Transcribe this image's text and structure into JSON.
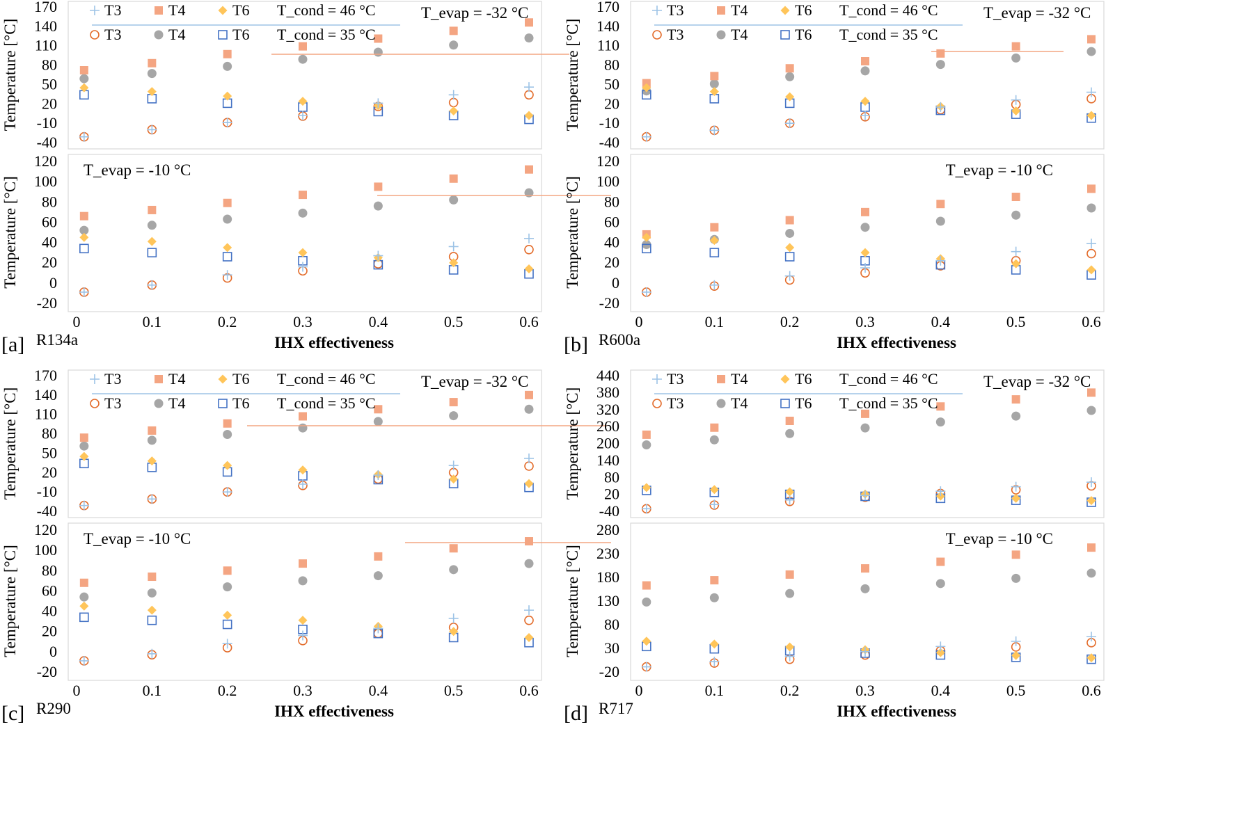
{
  "colors": {
    "T3_high": "#9dc3e6",
    "T4_high": "#f4a582",
    "T6_high": "#ffc55a",
    "T3_low": "#e36c2b",
    "T4_low": "#a6a6a6",
    "T6_low": "#4472c4",
    "cond_line_high": "#9dc3e6",
    "cond_line_low": "#f4a582"
  },
  "chart_data": [
    {
      "panel_label": "[a]",
      "refrigerant": "R134a",
      "type": "scatter",
      "xlabel": "IHX effectiveness",
      "x_ticks": [
        "0",
        "0.1",
        "0.2",
        "0.3",
        "0.4",
        "0.5",
        "0.6"
      ],
      "x": [
        0.01,
        0.1,
        0.2,
        0.3,
        0.4,
        0.5,
        0.6
      ],
      "legend": {
        "high": [
          "T3",
          "T4",
          "T6"
        ],
        "high_note": "T_cond = 46 °C",
        "low": [
          "T3",
          "T4",
          "T6"
        ],
        "low_note": "T_cond = 35 °C"
      },
      "subplots": [
        {
          "ylabel": "Temperature [°C]",
          "evap_note": "T_evap = -32 °C",
          "ylim": [
            -40,
            170
          ],
          "y_ticks": [
            "170",
            "140",
            "110",
            "80",
            "50",
            "20",
            "-10",
            "-40"
          ],
          "series": [
            {
              "name": "T3",
              "cond": "46",
              "values": [
                -31,
                -20,
                -9,
                2,
                21,
                34,
                46
              ]
            },
            {
              "name": "T4",
              "cond": "46",
              "values": [
                72,
                83,
                97,
                109,
                121,
                133,
                146
              ]
            },
            {
              "name": "T6",
              "cond": "46",
              "values": [
                45,
                39,
                32,
                24,
                17,
                9,
                2
              ]
            },
            {
              "name": "T3",
              "cond": "35",
              "values": [
                -31,
                -20,
                -9,
                1,
                16,
                22,
                34
              ]
            },
            {
              "name": "T4",
              "cond": "35",
              "values": [
                59,
                67,
                78,
                89,
                100,
                111,
                122
              ]
            },
            {
              "name": "T6",
              "cond": "35",
              "values": [
                34,
                28,
                21,
                15,
                8,
                2,
                -4
              ]
            }
          ]
        },
        {
          "ylabel": "Temperature [°C]",
          "evap_note": "T_evap = -10 °C",
          "ylim": [
            -20,
            120
          ],
          "y_ticks": [
            "120",
            "100",
            "80",
            "60",
            "40",
            "20",
            "0",
            "-20"
          ],
          "series": [
            {
              "name": "T3",
              "cond": "46",
              "values": [
                -9,
                -2,
                8,
                16,
                27,
                36,
                44
              ]
            },
            {
              "name": "T4",
              "cond": "46",
              "values": [
                66,
                72,
                79,
                87,
                95,
                103,
                112
              ]
            },
            {
              "name": "T6",
              "cond": "46",
              "values": [
                45,
                41,
                35,
                30,
                25,
                20,
                14
              ]
            },
            {
              "name": "T3",
              "cond": "35",
              "values": [
                -9,
                -2,
                5,
                12,
                19,
                26,
                33
              ]
            },
            {
              "name": "T4",
              "cond": "35",
              "values": [
                52,
                57,
                63,
                69,
                76,
                82,
                89
              ]
            },
            {
              "name": "T6",
              "cond": "35",
              "values": [
                34,
                30,
                26,
                22,
                18,
                13,
                9
              ]
            }
          ]
        }
      ]
    },
    {
      "panel_label": "[b]",
      "refrigerant": "R600a",
      "type": "scatter",
      "xlabel": "IHX effectiveness",
      "x_ticks": [
        "0",
        "0.1",
        "0.2",
        "0.3",
        "0.4",
        "0.5",
        "0.6"
      ],
      "x": [
        0.01,
        0.1,
        0.2,
        0.3,
        0.4,
        0.5,
        0.6
      ],
      "legend": {
        "high": [
          "T3",
          "T4",
          "T6"
        ],
        "high_note": "T_cond = 46 °C",
        "low": [
          "T3",
          "T4",
          "T6"
        ],
        "low_note": "T_cond = 35 °C"
      },
      "subplots": [
        {
          "ylabel": "Temperature [°C]",
          "evap_note": "T_evap = -32 °C",
          "ylim": [
            -40,
            170
          ],
          "y_ticks": [
            "170",
            "140",
            "110",
            "80",
            "50",
            "20",
            "-10",
            "-40"
          ],
          "series": [
            {
              "name": "T3",
              "cond": "46",
              "values": [
                -31,
                -21,
                -10,
                2,
                15,
                26,
                38
              ]
            },
            {
              "name": "T4",
              "cond": "46",
              "values": [
                52,
                63,
                75,
                86,
                98,
                109,
                120
              ]
            },
            {
              "name": "T6",
              "cond": "46",
              "values": [
                45,
                39,
                31,
                24,
                16,
                9,
                2
              ]
            },
            {
              "name": "T3",
              "cond": "35",
              "values": [
                -31,
                -21,
                -10,
                0,
                11,
                19,
                28
              ]
            },
            {
              "name": "T4",
              "cond": "35",
              "values": [
                40,
                51,
                62,
                71,
                81,
                91,
                101
              ]
            },
            {
              "name": "T6",
              "cond": "35",
              "values": [
                34,
                28,
                21,
                15,
                10,
                4,
                -2
              ]
            }
          ]
        },
        {
          "ylabel": "Temperature [°C]",
          "evap_note": "T_evap = -10 °C",
          "ylim": [
            -20,
            120
          ],
          "y_ticks": [
            "120",
            "100",
            "80",
            "60",
            "40",
            "20",
            "0",
            "-20"
          ],
          "series": [
            {
              "name": "T3",
              "cond": "46",
              "values": [
                -9,
                -2,
                7,
                15,
                22,
                31,
                39
              ]
            },
            {
              "name": "T4",
              "cond": "46",
              "values": [
                48,
                55,
                62,
                70,
                78,
                85,
                93
              ]
            },
            {
              "name": "T6",
              "cond": "46",
              "values": [
                45,
                42,
                35,
                30,
                24,
                19,
                13
              ]
            },
            {
              "name": "T3",
              "cond": "35",
              "values": [
                -9,
                -3,
                3,
                10,
                17,
                22,
                29
              ]
            },
            {
              "name": "T4",
              "cond": "35",
              "values": [
                38,
                43,
                49,
                55,
                61,
                67,
                74
              ]
            },
            {
              "name": "T6",
              "cond": "35",
              "values": [
                34,
                30,
                26,
                22,
                18,
                13,
                8
              ]
            }
          ]
        }
      ]
    },
    {
      "panel_label": "[c]",
      "refrigerant": "R290",
      "type": "scatter",
      "xlabel": "IHX effectiveness",
      "x_ticks": [
        "0",
        "0.1",
        "0.2",
        "0.3",
        "0.4",
        "0.5",
        "0.6"
      ],
      "x": [
        0.01,
        0.1,
        0.2,
        0.3,
        0.4,
        0.5,
        0.6
      ],
      "legend": {
        "high": [
          "T3",
          "T4",
          "T6"
        ],
        "high_note": "T_cond = 46 °C",
        "low": [
          "T3",
          "T4",
          "T6"
        ],
        "low_note": "T_cond = 35 °C"
      },
      "subplots": [
        {
          "ylabel": "Temperature [°C]",
          "evap_note": "T_evap = -32 °C",
          "ylim": [
            -40,
            170
          ],
          "y_ticks": [
            "170",
            "140",
            "110",
            "80",
            "50",
            "20",
            "-10",
            "-40"
          ],
          "series": [
            {
              "name": "T3",
              "cond": "46",
              "values": [
                -31,
                -21,
                -10,
                2,
                16,
                31,
                42
              ]
            },
            {
              "name": "T4",
              "cond": "46",
              "values": [
                74,
                85,
                96,
                107,
                118,
                129,
                140
              ]
            },
            {
              "name": "T6",
              "cond": "46",
              "values": [
                45,
                38,
                31,
                24,
                17,
                10,
                3
              ]
            },
            {
              "name": "T3",
              "cond": "35",
              "values": [
                -31,
                -21,
                -10,
                0,
                10,
                20,
                30
              ]
            },
            {
              "name": "T4",
              "cond": "35",
              "values": [
                61,
                70,
                79,
                89,
                99,
                108,
                118
              ]
            },
            {
              "name": "T6",
              "cond": "35",
              "values": [
                34,
                28,
                21,
                15,
                9,
                3,
                -3
              ]
            }
          ]
        },
        {
          "ylabel": "Temperature [°C]",
          "evap_note": "T_evap = -10 °C",
          "ylim": [
            -20,
            120
          ],
          "y_ticks": [
            "120",
            "100",
            "80",
            "60",
            "40",
            "20",
            "0",
            "-20"
          ],
          "series": [
            {
              "name": "T3",
              "cond": "46",
              "values": [
                -9,
                -2,
                8,
                16,
                23,
                33,
                41
              ]
            },
            {
              "name": "T4",
              "cond": "46",
              "values": [
                68,
                74,
                80,
                87,
                94,
                102,
                109
              ]
            },
            {
              "name": "T6",
              "cond": "46",
              "values": [
                45,
                41,
                36,
                31,
                25,
                20,
                14
              ]
            },
            {
              "name": "T3",
              "cond": "35",
              "values": [
                -9,
                -3,
                4,
                11,
                18,
                24,
                31
              ]
            },
            {
              "name": "T4",
              "cond": "35",
              "values": [
                54,
                58,
                64,
                70,
                75,
                81,
                87
              ]
            },
            {
              "name": "T6",
              "cond": "35",
              "values": [
                34,
                31,
                27,
                22,
                18,
                14,
                9
              ]
            }
          ]
        }
      ]
    },
    {
      "panel_label": "[d]",
      "refrigerant": "R717",
      "type": "scatter",
      "xlabel": "IHX effectiveness",
      "x_ticks": [
        "0",
        "0.1",
        "0.2",
        "0.3",
        "0.4",
        "0.5",
        "0.6"
      ],
      "x": [
        0.01,
        0.1,
        0.2,
        0.3,
        0.4,
        0.5,
        0.6
      ],
      "legend": {
        "high": [
          "T3",
          "T4",
          "T6"
        ],
        "high_note": "T_cond = 46 °C",
        "low": [
          "T3",
          "T4",
          "T6"
        ],
        "low_note": "T_cond = 35 °C"
      },
      "subplots": [
        {
          "ylabel": "Temperature [°C]",
          "evap_note": "T_evap = -32 °C",
          "ylim": [
            -40,
            440
          ],
          "y_ticks": [
            "440",
            "380",
            "320",
            "260",
            "200",
            "140",
            "80",
            "20",
            "-40"
          ],
          "series": [
            {
              "name": "T3",
              "cond": "46",
              "values": [
                -31,
                -16,
                0,
                16,
                31,
                47,
                63
              ]
            },
            {
              "name": "T4",
              "cond": "46",
              "values": [
                231,
                256,
                280,
                305,
                331,
                356,
                380
              ]
            },
            {
              "name": "T6",
              "cond": "46",
              "values": [
                44,
                37,
                29,
                21,
                14,
                6,
                -2
              ]
            },
            {
              "name": "T3",
              "cond": "35",
              "values": [
                -31,
                -18,
                -5,
                10,
                23,
                36,
                50
              ]
            },
            {
              "name": "T4",
              "cond": "35",
              "values": [
                195,
                213,
                235,
                255,
                276,
                297,
                317
              ]
            },
            {
              "name": "T6",
              "cond": "35",
              "values": [
                34,
                27,
                20,
                13,
                6,
                -1,
                -8
              ]
            }
          ]
        },
        {
          "ylabel": "Temperature [°C]",
          "evap_note": "T_evap = -10 °C",
          "ylim": [
            -20,
            280
          ],
          "y_ticks": [
            "280",
            "230",
            "180",
            "130",
            "80",
            "30",
            "-20"
          ],
          "series": [
            {
              "name": "T3",
              "cond": "46",
              "values": [
                -9,
                2,
                13,
                23,
                34,
                45,
                55
              ]
            },
            {
              "name": "T4",
              "cond": "46",
              "values": [
                163,
                174,
                186,
                199,
                213,
                228,
                243
              ]
            },
            {
              "name": "T6",
              "cond": "46",
              "values": [
                45,
                39,
                33,
                27,
                21,
                15,
                10
              ]
            },
            {
              "name": "T3",
              "cond": "35",
              "values": [
                -9,
                -1,
                7,
                16,
                25,
                33,
                42
              ]
            },
            {
              "name": "T4",
              "cond": "35",
              "values": [
                128,
                137,
                146,
                156,
                167,
                178,
                189
              ]
            },
            {
              "name": "T6",
              "cond": "35",
              "values": [
                34,
                29,
                25,
                20,
                16,
                11,
                7
              ]
            }
          ]
        }
      ]
    }
  ]
}
